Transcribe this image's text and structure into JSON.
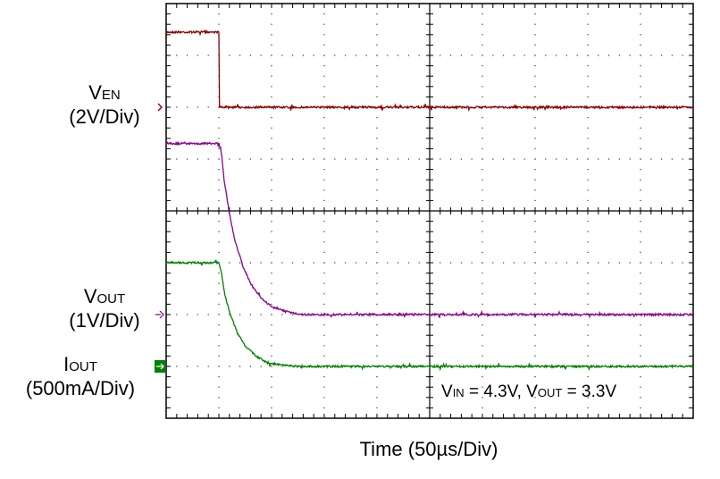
{
  "chart_data": {
    "type": "line",
    "xlabel": "Time  (50µs/Div)",
    "x_divisions": 10,
    "y_divisions": 8,
    "grid": true,
    "x_unit": "div",
    "series": [
      {
        "key": "ven",
        "color": "#8b0000",
        "marker": "#8b0000",
        "label_parts": [
          {
            "main": "V"
          },
          {
            "sub": "EN"
          }
        ],
        "label_scale": "(2V/Div)",
        "points": [
          [
            0,
            1.45
          ],
          [
            1.0,
            1.45
          ],
          [
            1.0,
            0.0
          ],
          [
            10,
            0.0
          ]
        ]
      },
      {
        "key": "vout",
        "color": "#8b008b",
        "marker": "#8b008b",
        "label_parts": [
          {
            "main": "V"
          },
          {
            "sub": "OUT"
          }
        ],
        "label_scale": "(1V/Div)",
        "points": [
          [
            0,
            3.3
          ],
          [
            1.0,
            3.3
          ],
          [
            1.05,
            3.1
          ],
          [
            1.1,
            2.6
          ],
          [
            1.2,
            1.95
          ],
          [
            1.3,
            1.45
          ],
          [
            1.45,
            0.95
          ],
          [
            1.6,
            0.6
          ],
          [
            1.8,
            0.32
          ],
          [
            2.0,
            0.15
          ],
          [
            2.3,
            0.05
          ],
          [
            2.6,
            0.0
          ],
          [
            10,
            0.0
          ]
        ]
      },
      {
        "key": "iout",
        "color": "#008000",
        "marker": "#008000",
        "label_parts": [
          {
            "main": "I"
          },
          {
            "sub": "OUT"
          }
        ],
        "label_scale": "(500mA/Div)",
        "points": [
          [
            0,
            2.0
          ],
          [
            1.0,
            2.0
          ],
          [
            1.05,
            1.8
          ],
          [
            1.1,
            1.45
          ],
          [
            1.2,
            1.05
          ],
          [
            1.35,
            0.65
          ],
          [
            1.5,
            0.4
          ],
          [
            1.7,
            0.2
          ],
          [
            1.9,
            0.08
          ],
          [
            2.2,
            0.02
          ],
          [
            2.5,
            0.0
          ],
          [
            10,
            0.0
          ]
        ]
      }
    ],
    "annotation_parts": [
      {
        "main": "V"
      },
      {
        "sub": "IN"
      },
      {
        "main": " = 4.3V, V"
      },
      {
        "sub": "OUT"
      },
      {
        "main": " = 3.3V"
      }
    ]
  }
}
